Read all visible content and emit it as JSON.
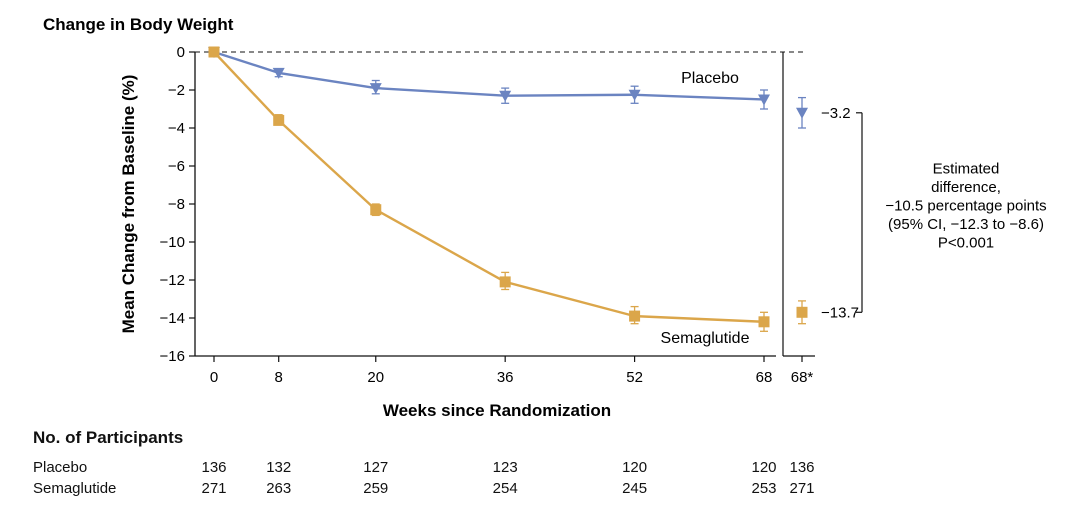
{
  "chart_data": {
    "type": "line",
    "title": "Change in Body Weight",
    "xlabel": "Weeks since Randomization",
    "ylabel": "Mean Change from Baseline (%)",
    "ylim": [
      -16,
      0
    ],
    "yticks": [
      0,
      -2,
      -4,
      -6,
      -8,
      -10,
      -12,
      -14,
      -16
    ],
    "ytick_labels": [
      "0",
      "−2",
      "−4",
      "−6",
      "−8",
      "−10",
      "−12",
      "−14",
      "−16"
    ],
    "xlim": [
      0,
      68
    ],
    "xticks": [
      0,
      8,
      20,
      36,
      52,
      68
    ],
    "xtick_labels": [
      "0",
      "8",
      "20",
      "36",
      "52",
      "68"
    ],
    "extra_xtick_label": "68*",
    "series": [
      {
        "name": "Placebo",
        "color": "#6b84c1",
        "marker": "triangle-down",
        "x": [
          0,
          8,
          20,
          36,
          52,
          68
        ],
        "values": [
          0,
          -1.1,
          -1.9,
          -2.3,
          -2.25,
          -2.5
        ],
        "err_low": [
          0,
          -1.3,
          -2.2,
          -2.7,
          -2.7,
          -3.0
        ],
        "err_high": [
          0,
          -0.9,
          -1.5,
          -1.9,
          -1.8,
          -2.0
        ],
        "estimate": -3.2,
        "estimate_label": "−3.2",
        "estimate_err": [
          -4.0,
          -2.4
        ]
      },
      {
        "name": "Semaglutide",
        "color": "#dba64a",
        "marker": "square",
        "x": [
          0,
          8,
          20,
          36,
          52,
          68
        ],
        "values": [
          0,
          -3.6,
          -8.3,
          -12.1,
          -13.9,
          -14.2
        ],
        "err_low": [
          0,
          -3.8,
          -8.6,
          -12.5,
          -14.3,
          -14.7
        ],
        "err_high": [
          0,
          -3.3,
          -8.0,
          -11.6,
          -13.4,
          -13.7
        ],
        "estimate": -13.7,
        "estimate_label": "−13.7",
        "estimate_err": [
          -14.3,
          -13.1
        ]
      }
    ],
    "annotation_lines": [
      "Estimated",
      "difference,",
      "−10.5 percentage points",
      "(95% CI, −12.3 to −8.6)",
      "P<0.001"
    ]
  },
  "participants": {
    "title": "No. of Participants",
    "rows": [
      {
        "label": "Placebo",
        "counts": [
          "136",
          "132",
          "127",
          "123",
          "120",
          "120",
          "136"
        ]
      },
      {
        "label": "Semaglutide",
        "counts": [
          "271",
          "263",
          "259",
          "254",
          "245",
          "253",
          "271"
        ]
      }
    ]
  }
}
